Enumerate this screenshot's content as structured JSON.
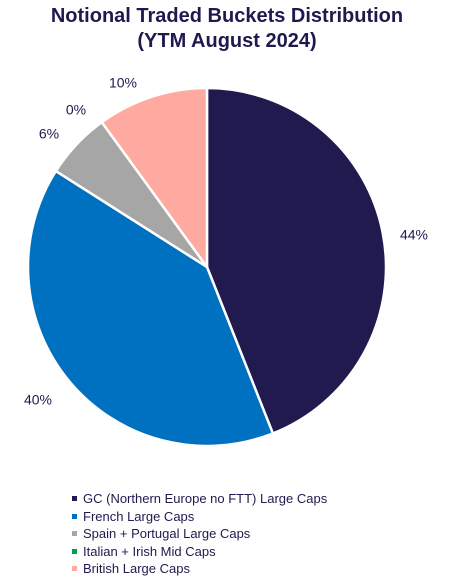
{
  "chart_data": {
    "type": "pie",
    "title": "Notional Traded Buckets Distribution",
    "subtitle": "(YTM August 2024)",
    "slices": [
      {
        "name": "GC (Northern Europe no FTT) Large Caps",
        "value": 44,
        "label": "44%",
        "color": "#211a4f"
      },
      {
        "name": "French Large Caps",
        "value": 40,
        "label": "40%",
        "color": "#0070c0"
      },
      {
        "name": "Spain + Portugal Large Caps",
        "value": 6,
        "label": "6%",
        "color": "#a6a6a6"
      },
      {
        "name": "Italian + Irish Mid Caps",
        "value": 0,
        "label": "0%",
        "color": "#00a050"
      },
      {
        "name": "British Large Caps",
        "value": 10,
        "label": "10%",
        "color": "#ffaaa0"
      }
    ],
    "legend_position": "bottom"
  }
}
